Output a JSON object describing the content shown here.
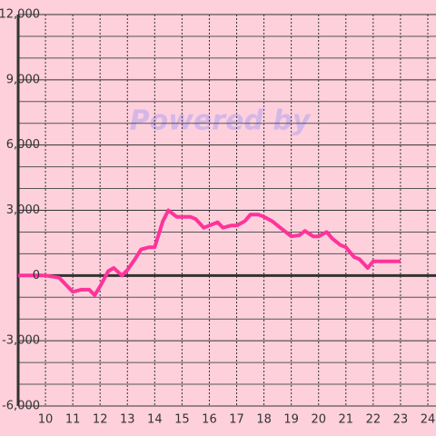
{
  "chart_data": {
    "type": "line",
    "watermark": "Powered by",
    "x": [
      9.0,
      10.0,
      10.5,
      11.0,
      11.3,
      11.6,
      11.8,
      12.0,
      12.3,
      12.5,
      12.8,
      13.0,
      13.3,
      13.5,
      13.8,
      14.0,
      14.3,
      14.5,
      14.8,
      15.0,
      15.3,
      15.5,
      15.8,
      16.0,
      16.3,
      16.5,
      16.8,
      17.0,
      17.3,
      17.5,
      17.8,
      18.0,
      18.3,
      18.5,
      18.8,
      19.0,
      19.3,
      19.5,
      19.8,
      20.0,
      20.3,
      20.5,
      20.8,
      21.0,
      21.3,
      21.5,
      21.8,
      22.0,
      22.3,
      22.5,
      23.0
    ],
    "series": [
      {
        "color": "#ff3399",
        "values": [
          0,
          0,
          -100,
          -750,
          -650,
          -650,
          -900,
          -500,
          200,
          350,
          0,
          250,
          800,
          1200,
          1300,
          1300,
          2500,
          3000,
          2700,
          2700,
          2700,
          2600,
          2200,
          2300,
          2450,
          2200,
          2300,
          2300,
          2500,
          2800,
          2800,
          2700,
          2500,
          2300,
          2000,
          1800,
          1850,
          2050,
          1800,
          1800,
          2000,
          1700,
          1400,
          1300,
          850,
          750,
          350,
          650,
          650,
          650,
          650
        ]
      }
    ],
    "xlim": [
      9,
      24.3
    ],
    "xticks": [
      10,
      11,
      12,
      13,
      14,
      15,
      16,
      17,
      18,
      19,
      20,
      21,
      22,
      23,
      24
    ],
    "ylim": [
      -6000,
      12000
    ],
    "yticks": [
      {
        "value": -6000,
        "label": "-6,000"
      },
      {
        "value": -3000,
        "label": "-3,000"
      },
      0,
      {
        "value": 3000,
        "label": "3,000"
      },
      {
        "value": 6000,
        "label": "6,000"
      },
      {
        "value": 9000,
        "label": "9,000"
      },
      {
        "value": 12000,
        "label": "12,000"
      }
    ],
    "yminor": [
      -5000,
      -4000,
      -2000,
      -1000,
      1000,
      2000,
      4000,
      5000,
      7000,
      8000,
      10000,
      11000
    ],
    "grid": true
  }
}
